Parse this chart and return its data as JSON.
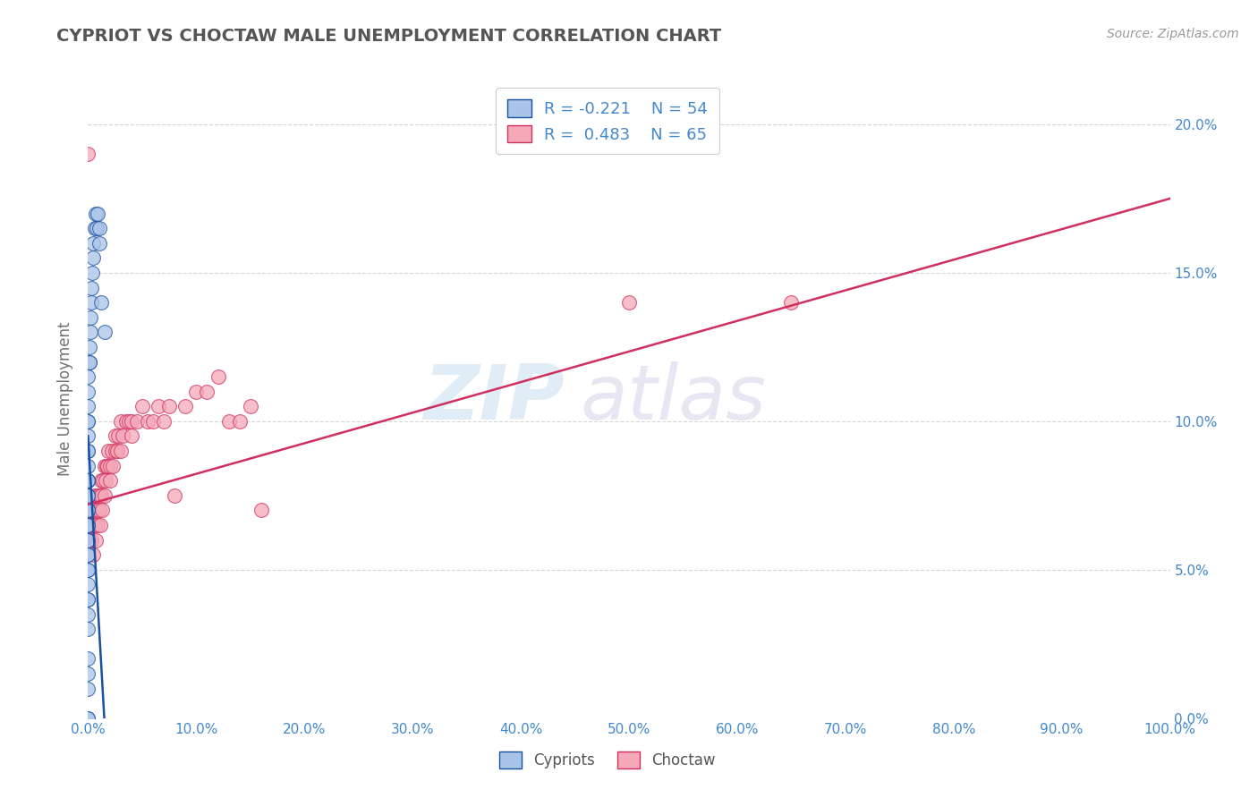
{
  "title": "CYPRIOT VS CHOCTAW MALE UNEMPLOYMENT CORRELATION CHART",
  "source": "Source: ZipAtlas.com",
  "ylabel": "Male Unemployment",
  "watermark_zip": "ZIP",
  "watermark_atlas": "atlas",
  "legend_cypriot_label": "Cypriots",
  "legend_choctaw_label": "Choctaw",
  "legend_cypriot_R": "R = -0.221",
  "legend_cypriot_N": "N = 54",
  "legend_choctaw_R": "R =  0.483",
  "legend_choctaw_N": "N = 65",
  "cypriot_color": "#aac4e8",
  "choctaw_color": "#f4a8b8",
  "cypriot_line_color": "#1a50a0",
  "choctaw_line_color": "#d03060",
  "title_color": "#555555",
  "label_color": "#4488cc",
  "background_color": "#ffffff",
  "grid_color": "#cccccc",
  "xmin": 0.0,
  "xmax": 1.0,
  "ymin": 0.0,
  "ymax": 0.215,
  "cypriot_x": [
    0.0,
    0.0,
    0.0,
    0.0,
    0.0,
    0.0,
    0.0,
    0.0,
    0.0,
    0.0,
    0.0,
    0.0,
    0.0,
    0.0,
    0.0,
    0.0,
    0.0,
    0.0,
    0.0,
    0.0,
    0.0,
    0.0,
    0.0,
    0.0,
    0.0,
    0.0,
    0.0,
    0.0,
    0.0,
    0.0,
    0.0,
    0.0,
    0.0,
    0.0,
    0.0,
    0.0,
    0.001,
    0.001,
    0.001,
    0.002,
    0.002,
    0.003,
    0.003,
    0.004,
    0.005,
    0.005,
    0.006,
    0.007,
    0.008,
    0.009,
    0.01,
    0.01,
    0.012,
    0.015
  ],
  "cypriot_y": [
    0.0,
    0.0,
    0.01,
    0.015,
    0.02,
    0.03,
    0.035,
    0.04,
    0.04,
    0.045,
    0.05,
    0.05,
    0.055,
    0.055,
    0.06,
    0.06,
    0.065,
    0.065,
    0.065,
    0.07,
    0.07,
    0.07,
    0.075,
    0.075,
    0.08,
    0.08,
    0.08,
    0.085,
    0.09,
    0.09,
    0.095,
    0.1,
    0.1,
    0.105,
    0.11,
    0.115,
    0.12,
    0.12,
    0.125,
    0.13,
    0.135,
    0.14,
    0.145,
    0.15,
    0.155,
    0.16,
    0.165,
    0.17,
    0.165,
    0.17,
    0.16,
    0.165,
    0.14,
    0.13
  ],
  "choctaw_x": [
    0.0,
    0.0,
    0.001,
    0.001,
    0.002,
    0.002,
    0.003,
    0.003,
    0.004,
    0.004,
    0.005,
    0.005,
    0.005,
    0.006,
    0.006,
    0.007,
    0.008,
    0.009,
    0.009,
    0.01,
    0.01,
    0.011,
    0.012,
    0.012,
    0.013,
    0.014,
    0.015,
    0.015,
    0.016,
    0.017,
    0.018,
    0.019,
    0.02,
    0.02,
    0.022,
    0.023,
    0.025,
    0.025,
    0.027,
    0.028,
    0.03,
    0.03,
    0.032,
    0.035,
    0.038,
    0.04,
    0.04,
    0.045,
    0.05,
    0.055,
    0.06,
    0.065,
    0.07,
    0.075,
    0.08,
    0.09,
    0.1,
    0.11,
    0.12,
    0.13,
    0.14,
    0.15,
    0.16,
    0.5,
    0.65
  ],
  "choctaw_y": [
    0.19,
    0.065,
    0.06,
    0.075,
    0.065,
    0.07,
    0.06,
    0.07,
    0.065,
    0.07,
    0.055,
    0.065,
    0.07,
    0.065,
    0.075,
    0.06,
    0.07,
    0.065,
    0.075,
    0.07,
    0.075,
    0.065,
    0.08,
    0.075,
    0.07,
    0.08,
    0.075,
    0.085,
    0.08,
    0.085,
    0.085,
    0.09,
    0.08,
    0.085,
    0.09,
    0.085,
    0.09,
    0.095,
    0.09,
    0.095,
    0.09,
    0.1,
    0.095,
    0.1,
    0.1,
    0.095,
    0.1,
    0.1,
    0.105,
    0.1,
    0.1,
    0.105,
    0.1,
    0.105,
    0.075,
    0.105,
    0.11,
    0.11,
    0.115,
    0.1,
    0.1,
    0.105,
    0.07,
    0.14,
    0.14
  ],
  "choctaw_line_x0": 0.0,
  "choctaw_line_y0": 0.072,
  "choctaw_line_x1": 1.0,
  "choctaw_line_y1": 0.175,
  "cypriot_line_x0": 0.0,
  "cypriot_line_y0": 0.095,
  "cypriot_line_x1": 0.015,
  "cypriot_line_y1": 0.0,
  "figsize": [
    14.06,
    8.92
  ],
  "dpi": 100
}
